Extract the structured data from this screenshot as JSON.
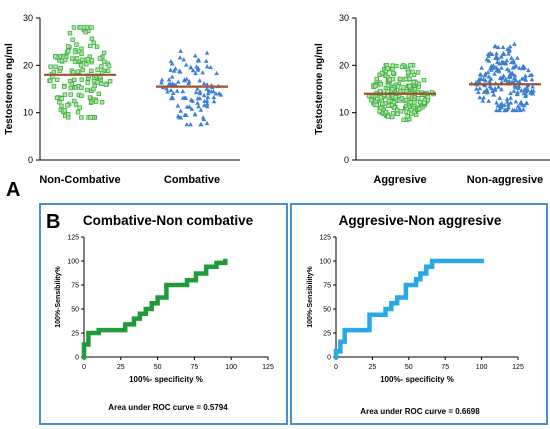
{
  "panels": {
    "a_label": "A",
    "b_label": "B"
  },
  "chart_data": [
    {
      "type": "scatter",
      "id": "scatter-left",
      "ylabel": "Testosterone ng/ml",
      "ylim": [
        0,
        30
      ],
      "yticks": [
        0,
        10,
        20,
        30
      ],
      "categories": [
        "Non-Combative",
        "Combative"
      ],
      "group_medians": [
        18,
        15.5
      ],
      "group_ranges": [
        [
          9,
          28
        ],
        [
          7.5,
          23
        ]
      ],
      "point_colors": [
        "#3cb043",
        "#3b7fd6"
      ],
      "median_color": "#a0522d"
    },
    {
      "type": "scatter",
      "id": "scatter-right",
      "ylabel": "Testosterone ng/ml",
      "ylim": [
        0,
        30
      ],
      "yticks": [
        0,
        10,
        20,
        30
      ],
      "categories": [
        "Aggresive",
        "Non-aggresive"
      ],
      "group_medians": [
        14,
        16
      ],
      "group_ranges": [
        [
          8.5,
          20
        ],
        [
          10.5,
          24.5
        ]
      ],
      "point_colors": [
        "#3cb043",
        "#3b7fd6"
      ],
      "median_color": "#a0522d"
    },
    {
      "type": "line",
      "id": "roc-left",
      "title": "Combative-Non combative",
      "xlabel": "100%- specificity %",
      "ylabel": "100%-Sensibility%",
      "xlim": [
        0,
        125
      ],
      "ylim": [
        0,
        125
      ],
      "xticks": [
        0,
        25,
        50,
        75,
        100,
        125
      ],
      "yticks": [
        0,
        25,
        50,
        75,
        100,
        125
      ],
      "line_color": "#1f9b3b",
      "annotation": "Area under ROC curve = 0.5794",
      "x": [
        0,
        0,
        3,
        3,
        10,
        10,
        28,
        28,
        34,
        34,
        38,
        38,
        42,
        42,
        46,
        46,
        50,
        50,
        56,
        56,
        70,
        70,
        76,
        76,
        83,
        83,
        90,
        90,
        96,
        96
      ],
      "y": [
        0,
        13,
        13,
        25,
        25,
        28,
        28,
        34,
        34,
        40,
        40,
        45,
        45,
        50,
        50,
        56,
        56,
        62,
        62,
        75,
        75,
        80,
        80,
        87,
        87,
        94,
        94,
        98,
        98,
        100
      ]
    },
    {
      "type": "line",
      "id": "roc-right",
      "title": "Aggresive-Non aggresive",
      "xlabel": "100%- specificity %",
      "ylabel": "100%-Sensibility%",
      "xlim": [
        0,
        125
      ],
      "ylim": [
        0,
        125
      ],
      "xticks": [
        0,
        25,
        50,
        75,
        100,
        125
      ],
      "yticks": [
        0,
        25,
        50,
        75,
        100,
        125
      ],
      "line_color": "#29a8e8",
      "annotation": "Area under ROC curve = 0.6698",
      "x": [
        0,
        0,
        3,
        3,
        6,
        6,
        23,
        23,
        34,
        34,
        38,
        38,
        42,
        42,
        48,
        48,
        55,
        55,
        58,
        58,
        62,
        62,
        66,
        66,
        100
      ],
      "y": [
        0,
        6,
        6,
        16,
        16,
        28,
        28,
        44,
        44,
        50,
        50,
        56,
        56,
        62,
        62,
        75,
        75,
        81,
        81,
        87,
        87,
        94,
        94,
        100,
        100
      ]
    }
  ]
}
